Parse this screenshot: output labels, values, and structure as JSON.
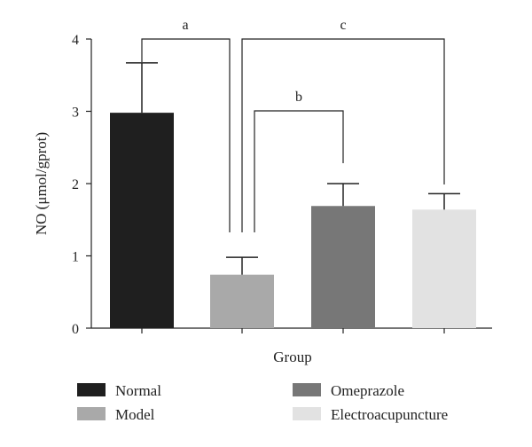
{
  "chart_data": {
    "type": "bar",
    "categories": [
      "Normal",
      "Model",
      "Omeprazole",
      "Electroacupuncture"
    ],
    "values": [
      2.98,
      0.74,
      1.69,
      1.64
    ],
    "errors": [
      0.69,
      0.24,
      0.31,
      0.22
    ],
    "colors": [
      "#1f1f1f",
      "#a9a9a9",
      "#777777",
      "#e2e2e2"
    ],
    "xlabel": "Group",
    "ylabel": "NO (μmol/gprot)",
    "ylim": [
      0,
      4
    ],
    "yticks": [
      "0",
      "1",
      "2",
      "3",
      "4"
    ],
    "grid": false,
    "legend_position": "bottom",
    "legend": [
      "Normal",
      "Model",
      "Omeprazole",
      "Electroacupuncture"
    ],
    "significance": [
      {
        "label": "a",
        "from": "Normal",
        "to": "Model"
      },
      {
        "label": "b",
        "from": "Model",
        "to": "Omeprazole"
      },
      {
        "label": "c",
        "from": "Model",
        "to": "Electroacupuncture"
      }
    ]
  }
}
